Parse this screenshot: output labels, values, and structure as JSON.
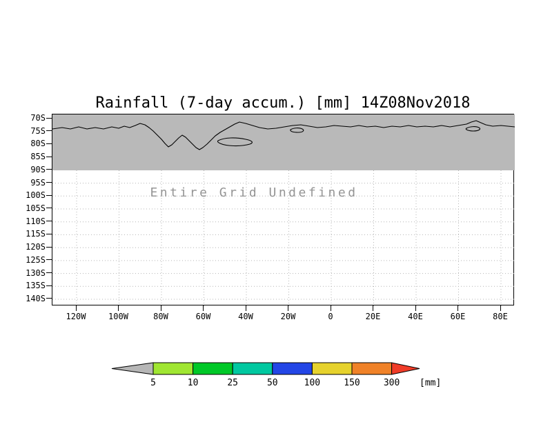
{
  "title": "Rainfall (7-day accum.) [mm] 14Z08Nov2018",
  "annotation": "Entire Grid Undefined",
  "axes": {
    "y_ticks": [
      "70S",
      "75S",
      "80S",
      "85S",
      "90S",
      "95S",
      "100S",
      "105S",
      "110S",
      "115S",
      "120S",
      "125S",
      "130S",
      "135S",
      "140S"
    ],
    "x_ticks": [
      "120W",
      "100W",
      "80W",
      "60W",
      "40W",
      "20W",
      "0",
      "20E",
      "40E",
      "60E",
      "80E"
    ]
  },
  "colorbar": {
    "levels": [
      "5",
      "10",
      "25",
      "50",
      "100",
      "150",
      "300"
    ],
    "unit": "[mm]",
    "below_color": "#b6b6b6",
    "segment_colors": [
      "#a0e632",
      "#00c828",
      "#00c8a0",
      "#2346e6",
      "#e6d22d",
      "#f08228"
    ],
    "above_color": "#f03c28"
  },
  "map": {
    "shaded_region_color": "#b9b9b9",
    "coastline_color": "#000000"
  },
  "chart_data": {
    "type": "heatmap",
    "title": "Rainfall (7-day accum.) [mm] 14Z08Nov2018",
    "variable": "7-day accumulated rainfall",
    "unit": "mm",
    "timestamp": "14Z08Nov2018",
    "status_note": "Entire Grid Undefined (no rainfall values plotted; only map background shading and coastlines from 70S to 90S are drawn)",
    "x_axis": {
      "label": "longitude",
      "tick_labels": [
        "120W",
        "100W",
        "80W",
        "60W",
        "40W",
        "20W",
        "0",
        "20E",
        "40E",
        "60E",
        "80E"
      ]
    },
    "y_axis": {
      "label": "latitude",
      "tick_labels": [
        "70S",
        "75S",
        "80S",
        "85S",
        "90S",
        "95S",
        "100S",
        "105S",
        "110S",
        "115S",
        "120S",
        "125S",
        "130S",
        "135S",
        "140S"
      ]
    },
    "colorbar_levels": [
      5,
      10,
      25,
      50,
      100,
      150,
      300
    ],
    "colorbar_unit": "mm",
    "grid": "dotted",
    "legend_position": "bottom",
    "values": null
  }
}
